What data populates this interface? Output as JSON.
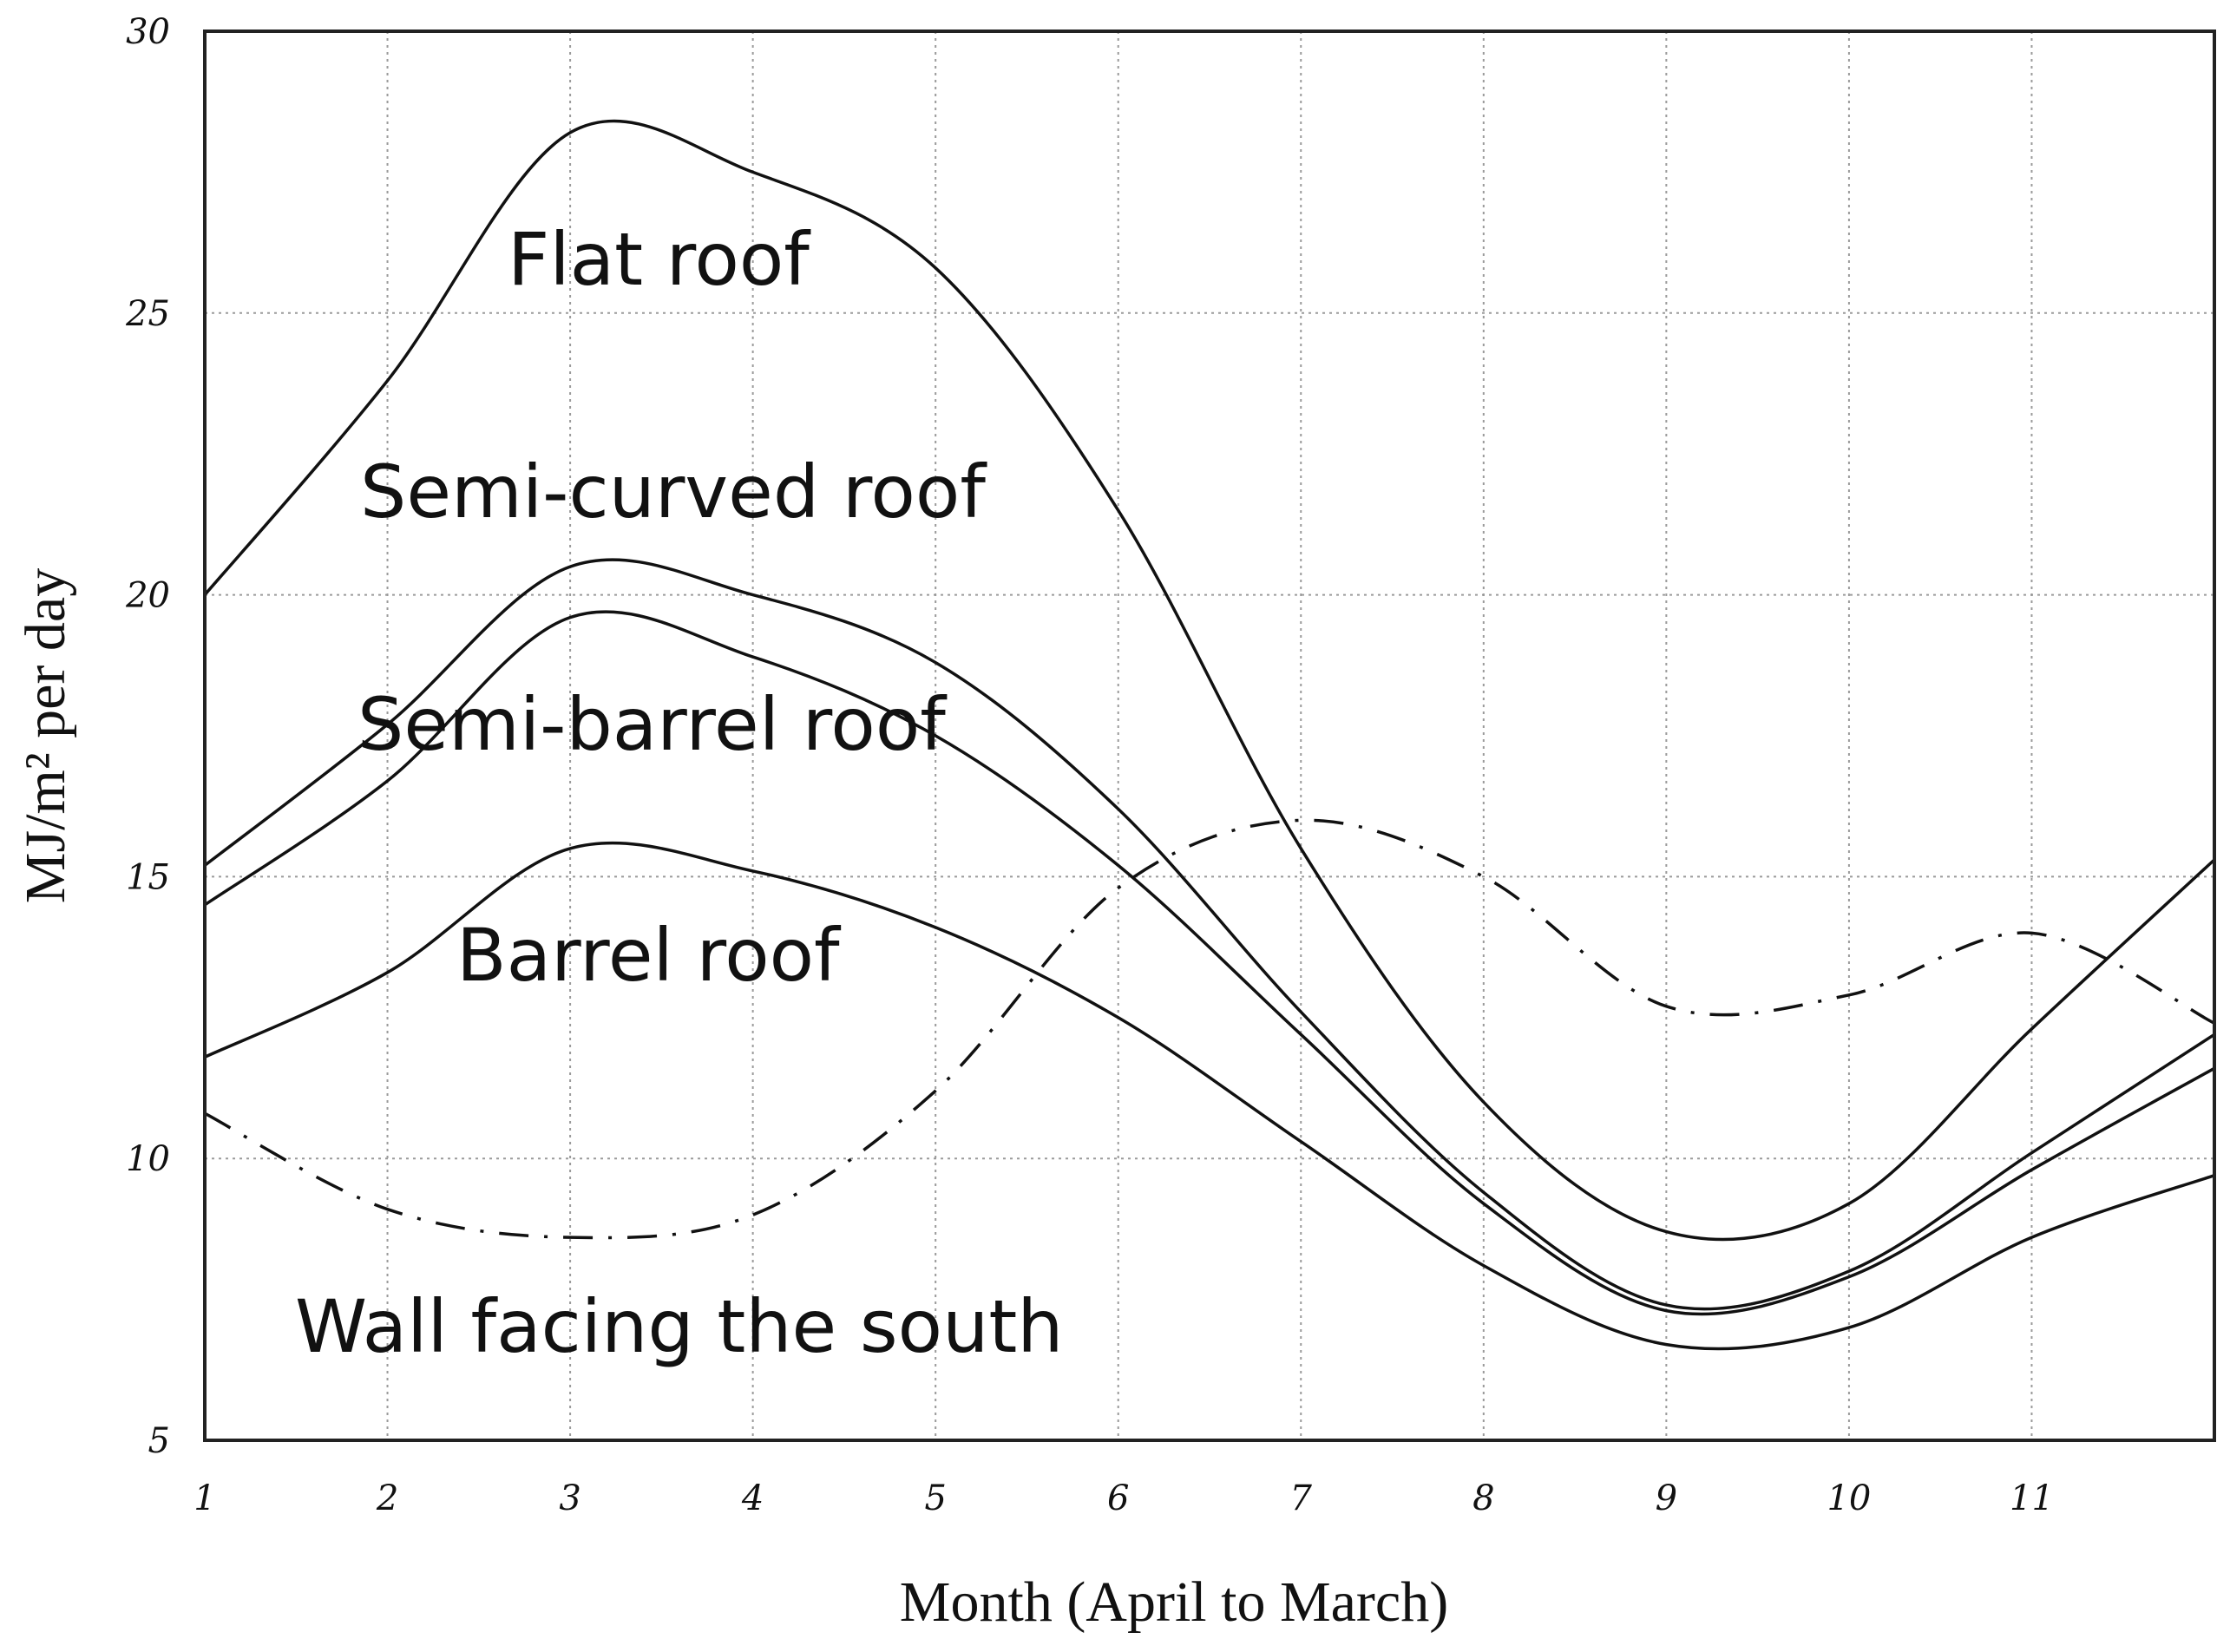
{
  "chart_data": {
    "type": "line",
    "xlabel": "Month (April to March)",
    "ylabel": "MJ/m² per day",
    "xlim": [
      1,
      12
    ],
    "ylim": [
      5,
      30
    ],
    "x_ticks": [
      "1",
      "2",
      "3",
      "4",
      "5",
      "6",
      "7",
      "8",
      "9",
      "10",
      "11"
    ],
    "y_ticks": [
      "5",
      "10",
      "15",
      "20",
      "25",
      "30"
    ],
    "grid": true,
    "x": [
      1,
      2,
      3,
      4,
      5,
      6,
      7,
      8,
      9,
      10,
      11,
      12
    ],
    "series": [
      {
        "name": "Flat roof",
        "values": [
          20.0,
          23.8,
          28.2,
          27.5,
          25.8,
          21.5,
          15.5,
          11.0,
          8.7,
          9.2,
          12.3,
          15.3
        ],
        "dash": "solid"
      },
      {
        "name": "Semi-curved roof",
        "values": [
          15.2,
          17.7,
          20.5,
          20.0,
          18.8,
          16.2,
          12.6,
          9.4,
          7.4,
          8.0,
          10.1,
          12.2
        ],
        "dash": "solid"
      },
      {
        "name": "Semi-barrel roof",
        "values": [
          14.5,
          16.7,
          19.6,
          18.9,
          17.5,
          15.2,
          12.2,
          9.2,
          7.3,
          7.9,
          9.8,
          11.6
        ],
        "dash": "solid"
      },
      {
        "name": "Barrel roof",
        "values": [
          11.8,
          13.3,
          15.5,
          15.1,
          14.1,
          12.5,
          10.3,
          8.1,
          6.7,
          7.0,
          8.6,
          9.7
        ],
        "dash": "solid"
      },
      {
        "name": "Wall facing the south",
        "values": [
          10.8,
          9.1,
          8.6,
          9.0,
          11.2,
          14.8,
          16.0,
          15.0,
          12.7,
          12.9,
          14.0,
          12.4
        ],
        "dash": "dashed"
      }
    ]
  },
  "labels": {
    "flat_roof": "Flat roof",
    "semi_curved_roof": "Semi-curved roof",
    "semi_barrel_roof": "Semi-barrel roof",
    "barrel_roof": "Barrel roof",
    "wall_south": "Wall facing the south"
  }
}
